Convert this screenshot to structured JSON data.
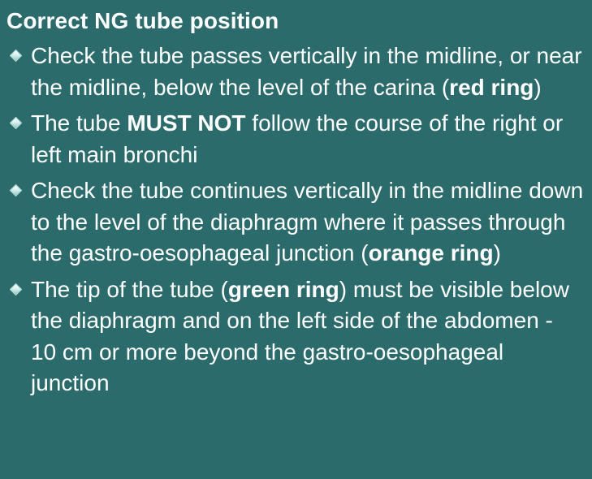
{
  "slide": {
    "title": "Correct NG tube position",
    "bullets": [
      {
        "icon": "diamond-bullet-icon",
        "parts": [
          "Check the tube passes vertically in the midline, or near the midline, below the level of the carina (",
          "red ring",
          ")"
        ]
      },
      {
        "icon": "diamond-bullet-icon",
        "parts": [
          "The tube ",
          "MUST NOT",
          " follow the course of the right or left main bronchi"
        ]
      },
      {
        "icon": "diamond-bullet-icon",
        "parts": [
          "Check the tube continues vertically in the midline down to the level of the diaphragm where it passes through the gastro-oesophageal junction (",
          "orange ring",
          ")"
        ]
      },
      {
        "icon": "diamond-bullet-icon",
        "parts": [
          "The tip of the tube (",
          "green ring",
          ") must be visible below the diaphragm and on the left side of the abdomen - 10 cm or more beyond the gastro-oesophageal junction"
        ]
      }
    ]
  },
  "colors": {
    "background": "#2b6b6b",
    "text": "#ffffff"
  }
}
